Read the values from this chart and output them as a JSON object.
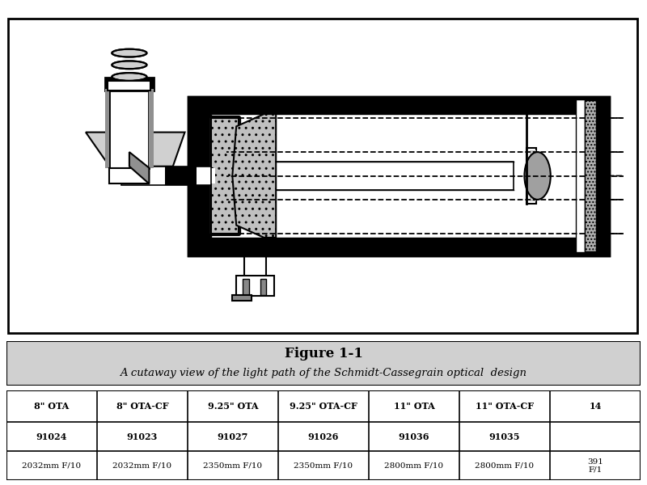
{
  "title": "Figure 1-1",
  "subtitle": "A cutaway view of the light path of the Schmidt-Cassegrain optical  design",
  "table_headers": [
    "8\" OTA",
    "8\" OTA-CF",
    "9.25\" OTA",
    "9.25\" OTA-CF",
    "11\" OTA",
    "11\" OTA-CF",
    "14"
  ],
  "table_row1": [
    "91024",
    "91023",
    "91027",
    "91026",
    "91036",
    "91035",
    ""
  ],
  "table_row2": [
    "2032mm F/10",
    "2032mm F/10",
    "2350mm F/10",
    "2350mm F/10",
    "2800mm F/10",
    "2800mm F/10",
    "391\nF/1"
  ],
  "bg_color": "#ffffff",
  "caption_bg": "#d0d0d0",
  "border_color": "#000000",
  "fig_width": 8.0,
  "fig_height": 6.0,
  "diagram_bg": "#ffffff",
  "black": "#000000",
  "gray_light": "#c8c8c8",
  "gray_mid": "#888888",
  "gray_dark": "#404040",
  "hatch_color": "#000000"
}
